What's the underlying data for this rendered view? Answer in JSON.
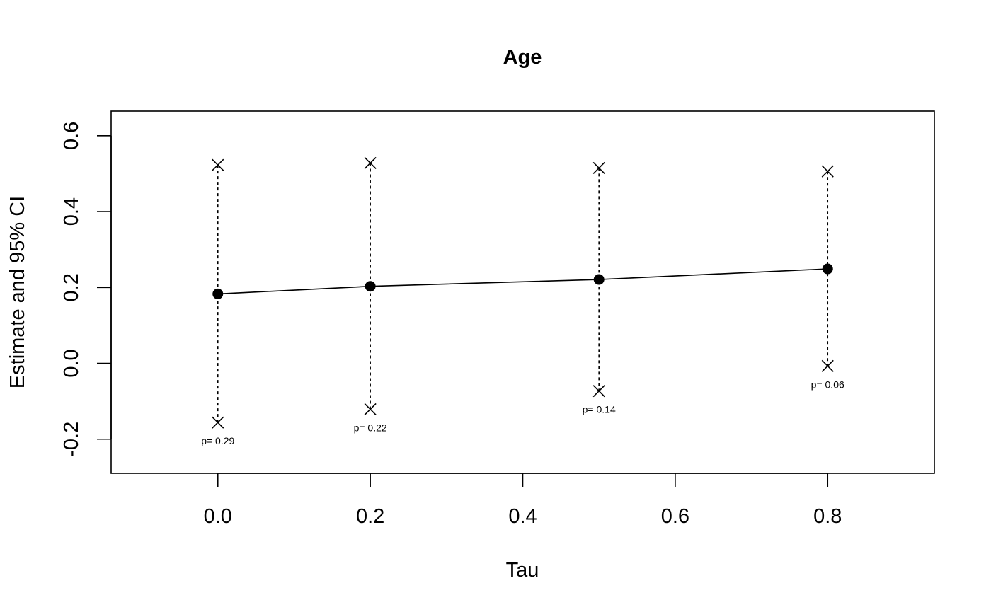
{
  "chart_data": {
    "type": "scatter",
    "title": "Age",
    "xlabel": "Tau",
    "ylabel": "Estimate and 95% CI",
    "xlim": [
      -0.14,
      0.94
    ],
    "ylim": [
      -0.29,
      0.665
    ],
    "xticks": [
      0.0,
      0.2,
      0.4,
      0.6,
      0.8
    ],
    "xtick_labels": [
      "0.0",
      "0.2",
      "0.4",
      "0.6",
      "0.8"
    ],
    "yticks": [
      -0.2,
      0.0,
      0.2,
      0.4,
      0.6
    ],
    "ytick_labels": [
      "-0.2",
      "0.0",
      "0.2",
      "0.4",
      "0.6"
    ],
    "series": [
      {
        "x": [
          0.0,
          0.2,
          0.5,
          0.8
        ],
        "estimate": [
          0.183,
          0.203,
          0.221,
          0.249
        ],
        "ci_upper": [
          0.523,
          0.528,
          0.515,
          0.506
        ],
        "ci_lower": [
          -0.156,
          -0.121,
          -0.073,
          -0.007
        ],
        "p_labels": [
          "p= 0.29",
          "p= 0.22",
          "p= 0.14",
          "p= 0.06"
        ]
      }
    ],
    "grid": false,
    "legend": "none"
  }
}
